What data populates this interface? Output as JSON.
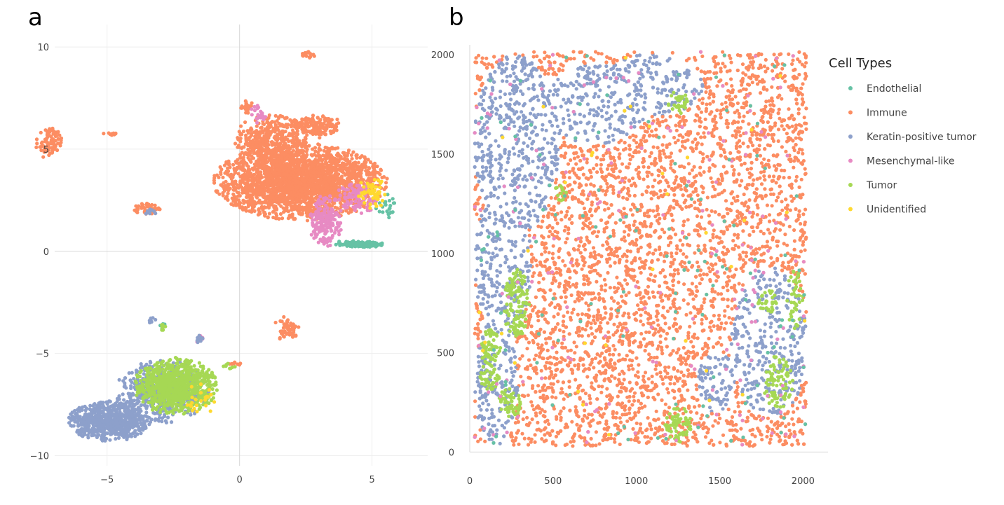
{
  "figure": {
    "panel_a_label": "a",
    "panel_b_label": "b"
  },
  "legend": {
    "title": "Cell Types",
    "items": [
      {
        "label": "Endothelial",
        "color": "#66c2a5"
      },
      {
        "label": "Immune",
        "color": "#fc8d62"
      },
      {
        "label": "Keratin-positive tumor",
        "color": "#8da0cb"
      },
      {
        "label": "Mesenchymal-like",
        "color": "#e78ac3"
      },
      {
        "label": "Tumor",
        "color": "#a6d854"
      },
      {
        "label": "Unidentified",
        "color": "#ffd92f"
      }
    ]
  },
  "chart_data": [
    {
      "type": "scatter",
      "panel": "a",
      "title": "",
      "xlabel": "",
      "ylabel": "",
      "xlim": [
        -8.3,
        7.1
      ],
      "ylim": [
        -10.5,
        11.1
      ],
      "xticks": [
        -5,
        0,
        5
      ],
      "yticks": [
        10,
        5,
        0,
        -5,
        -10
      ],
      "grid": true,
      "series": [
        {
          "name": "Immune",
          "clusters": [
            {
              "cx": 2.3,
              "cy": 3.4,
              "rx": 3.3,
              "ry": 1.9,
              "n": 2400
            },
            {
              "cx": 1.2,
              "cy": 5.5,
              "rx": 1.4,
              "ry": 1.2,
              "n": 400
            },
            {
              "cx": 2.9,
              "cy": 6.1,
              "rx": 1.0,
              "ry": 0.6,
              "n": 160
            },
            {
              "cx": -7.2,
              "cy": 5.3,
              "rx": 0.5,
              "ry": 0.8,
              "n": 90
            },
            {
              "cx": -4.8,
              "cy": 5.75,
              "rx": 0.35,
              "ry": 0.08,
              "n": 14
            },
            {
              "cx": -3.5,
              "cy": 2.1,
              "rx": 0.5,
              "ry": 0.3,
              "n": 50
            },
            {
              "cx": 2.6,
              "cy": 9.6,
              "rx": 0.25,
              "ry": 0.25,
              "n": 18
            },
            {
              "cx": 1.8,
              "cy": -3.8,
              "rx": 0.5,
              "ry": 0.7,
              "n": 55
            },
            {
              "cx": -0.15,
              "cy": -5.5,
              "rx": 0.25,
              "ry": 0.1,
              "n": 10
            },
            {
              "cx": 0.3,
              "cy": 7.0,
              "rx": 0.3,
              "ry": 0.4,
              "n": 25
            }
          ]
        },
        {
          "name": "Mesenchymal-like",
          "clusters": [
            {
              "cx": 3.2,
              "cy": 1.5,
              "rx": 0.7,
              "ry": 1.3,
              "n": 180
            },
            {
              "cx": 4.4,
              "cy": 2.6,
              "rx": 0.8,
              "ry": 0.8,
              "n": 90
            },
            {
              "cx": 0.7,
              "cy": 6.7,
              "rx": 0.3,
              "ry": 0.5,
              "n": 25
            },
            {
              "cx": -1.5,
              "cy": -4.3,
              "rx": 0.15,
              "ry": 0.2,
              "n": 8
            }
          ]
        },
        {
          "name": "Endothelial",
          "clusters": [
            {
              "cx": 4.5,
              "cy": 0.35,
              "rx": 1.0,
              "ry": 0.2,
              "n": 110
            },
            {
              "cx": 5.5,
              "cy": 2.2,
              "rx": 0.4,
              "ry": 0.6,
              "n": 25
            },
            {
              "cx": -2.9,
              "cy": -3.7,
              "rx": 0.1,
              "ry": 0.2,
              "n": 6
            }
          ]
        },
        {
          "name": "Keratin-positive tumor",
          "clusters": [
            {
              "cx": -4.9,
              "cy": -8.3,
              "rx": 1.6,
              "ry": 1.0,
              "n": 700
            },
            {
              "cx": -2.9,
              "cy": -6.9,
              "rx": 1.8,
              "ry": 1.6,
              "n": 500
            },
            {
              "cx": -3.3,
              "cy": -3.4,
              "rx": 0.15,
              "ry": 0.2,
              "n": 10
            },
            {
              "cx": -1.5,
              "cy": -4.3,
              "rx": 0.15,
              "ry": 0.25,
              "n": 10
            },
            {
              "cx": -3.4,
              "cy": 1.95,
              "rx": 0.3,
              "ry": 0.15,
              "n": 10
            }
          ]
        },
        {
          "name": "Tumor",
          "clusters": [
            {
              "cx": -2.4,
              "cy": -6.6,
              "rx": 1.6,
              "ry": 1.4,
              "n": 850
            },
            {
              "cx": -2.9,
              "cy": -3.7,
              "rx": 0.1,
              "ry": 0.2,
              "n": 8
            },
            {
              "cx": -0.4,
              "cy": -5.6,
              "rx": 0.25,
              "ry": 0.15,
              "n": 8
            }
          ]
        },
        {
          "name": "Unidentified",
          "clusters": [
            {
              "cx": 5.0,
              "cy": 2.8,
              "rx": 0.6,
              "ry": 0.8,
              "n": 50
            },
            {
              "cx": -1.5,
              "cy": -7.4,
              "rx": 0.7,
              "ry": 0.9,
              "n": 25
            }
          ]
        }
      ]
    },
    {
      "type": "scatter",
      "panel": "b",
      "title": "",
      "xlabel": "",
      "ylabel": "",
      "xlim": [
        0,
        2150
      ],
      "ylim": [
        -20,
        2050
      ],
      "xticks": [
        0,
        500,
        1000,
        1500,
        2000
      ],
      "yticks": [
        2000,
        1500,
        1000,
        500,
        0
      ],
      "grid": false,
      "series": [
        {
          "name": "Immune",
          "region": "background",
          "n": 6500
        },
        {
          "name": "Keratin-positive tumor",
          "regions": [
            {
              "cx": 280,
              "cy": 1550,
              "rx": 260,
              "ry": 450
            },
            {
              "cx": 750,
              "cy": 1750,
              "rx": 340,
              "ry": 200
            },
            {
              "cx": 1100,
              "cy": 1850,
              "rx": 300,
              "ry": 160
            },
            {
              "cx": 200,
              "cy": 950,
              "rx": 170,
              "ry": 380
            },
            {
              "cx": 160,
              "cy": 350,
              "rx": 130,
              "ry": 330
            },
            {
              "cx": 1800,
              "cy": 550,
              "rx": 230,
              "ry": 380
            },
            {
              "cx": 1480,
              "cy": 350,
              "rx": 120,
              "ry": 150
            }
          ],
          "density": 0.72
        },
        {
          "name": "Tumor",
          "clusters": [
            {
              "cx": 280,
              "cy": 750,
              "rx": 80,
              "ry": 170,
              "n": 120
            },
            {
              "cx": 120,
              "cy": 530,
              "rx": 70,
              "ry": 90,
              "n": 60
            },
            {
              "cx": 120,
              "cy": 380,
              "rx": 60,
              "ry": 70,
              "n": 40
            },
            {
              "cx": 240,
              "cy": 250,
              "rx": 70,
              "ry": 80,
              "n": 50
            },
            {
              "cx": 1250,
              "cy": 140,
              "rx": 80,
              "ry": 90,
              "n": 65
            },
            {
              "cx": 1850,
              "cy": 350,
              "rx": 90,
              "ry": 140,
              "n": 80
            },
            {
              "cx": 1790,
              "cy": 760,
              "rx": 60,
              "ry": 60,
              "n": 30
            },
            {
              "cx": 1250,
              "cy": 1760,
              "rx": 60,
              "ry": 60,
              "n": 30
            },
            {
              "cx": 1950,
              "cy": 770,
              "rx": 50,
              "ry": 150,
              "n": 40
            },
            {
              "cx": 550,
              "cy": 1320,
              "rx": 40,
              "ry": 60,
              "n": 15
            }
          ]
        },
        {
          "name": "Mesenchymal-like",
          "scatter": true,
          "n": 170
        },
        {
          "name": "Endothelial",
          "scatter": true,
          "n": 120
        },
        {
          "name": "Unidentified",
          "scatter": true,
          "n": 35
        }
      ]
    }
  ]
}
